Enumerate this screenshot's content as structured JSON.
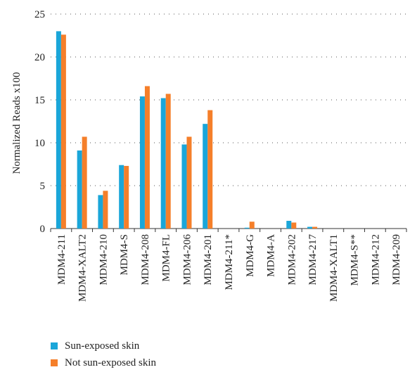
{
  "chart_data": {
    "type": "bar",
    "title": "",
    "xlabel": "",
    "ylabel": "Normalized Reads x100",
    "ylim": [
      0,
      25
    ],
    "yticks": [
      0,
      5,
      10,
      15,
      20,
      25
    ],
    "grid": "horizontal dotted",
    "legend_position": "bottom",
    "categories": [
      "MDM4-211",
      "MDM4-XALT2",
      "MDM4-210",
      "MDM4-S",
      "MDM4-208",
      "MDM4-FL",
      "MDM4-206",
      "MDM4-201",
      "MDM4-211*",
      "MDM4-G",
      "MDM4-A",
      "MDM4-202",
      "MDM4-217",
      "MDM4-XALT1",
      "MDM4-S**",
      "MDM4-212",
      "MDM4-209"
    ],
    "series": [
      {
        "name": "Sun-exposed skin",
        "color": "#1aa6d9",
        "values": [
          23.0,
          9.1,
          3.9,
          7.4,
          15.4,
          15.2,
          9.8,
          12.2,
          0.0,
          0.1,
          0.0,
          0.9,
          0.2,
          0.0,
          0.0,
          0.0,
          0.0
        ]
      },
      {
        "name": "Not sun-exposed skin",
        "color": "#f57f2a",
        "values": [
          22.6,
          10.7,
          4.4,
          7.3,
          16.6,
          15.7,
          10.7,
          13.8,
          0.0,
          0.8,
          0.0,
          0.7,
          0.2,
          0.0,
          0.0,
          0.0,
          0.0
        ]
      }
    ]
  }
}
